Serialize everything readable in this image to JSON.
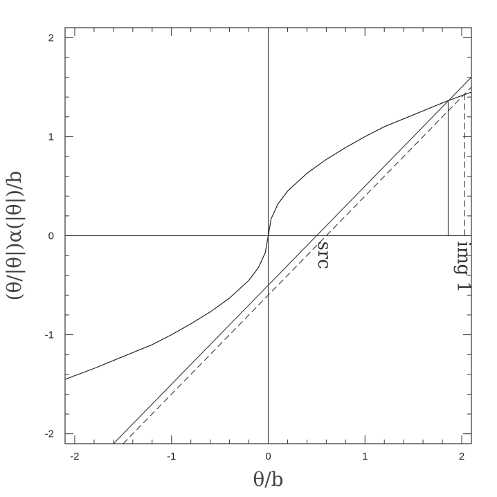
{
  "chart_data": {
    "type": "line",
    "xlabel": "θ/b",
    "ylabel": "(θ/|θ|)α(|θ|)/b",
    "xlim": [
      -2.1,
      2.1
    ],
    "ylim": [
      -2.1,
      2.1
    ],
    "xticks": [
      -2,
      -1,
      0,
      1,
      2
    ],
    "yticks": [
      -2,
      -1,
      0,
      1,
      2
    ],
    "xtick_labels": [
      "-2",
      "-1",
      "0",
      "1",
      "2"
    ],
    "ytick_labels": [
      "-2",
      "-1",
      "0",
      "1",
      "2"
    ],
    "grid": false,
    "series": [
      {
        "style": "solid",
        "color": "#222222",
        "x": [
          -2.1,
          -1.8,
          -1.5,
          -1.2,
          -1.0,
          -0.8,
          -0.6,
          -0.4,
          -0.2,
          -0.1,
          -0.03,
          0,
          0.03,
          0.1,
          0.2,
          0.4,
          0.6,
          0.8,
          1.0,
          1.2,
          1.5,
          1.85,
          2.1
        ],
        "y": [
          -1.45,
          -1.34,
          -1.22,
          -1.1,
          -1.0,
          -0.89,
          -0.77,
          -0.63,
          -0.45,
          -0.32,
          -0.17,
          0,
          0.17,
          0.32,
          0.45,
          0.63,
          0.77,
          0.89,
          1.0,
          1.1,
          1.22,
          1.36,
          1.45
        ]
      },
      {
        "style": "solid",
        "color": "#444444",
        "x": [
          -1.6,
          2.1
        ],
        "y": [
          -2.1,
          1.6
        ]
      },
      {
        "style": "dashed",
        "color": "#444444",
        "x": [
          -1.5,
          2.1
        ],
        "y": [
          -2.1,
          1.5
        ]
      }
    ],
    "reference_lines": [
      {
        "orientation": "vertical",
        "x": 0,
        "style": "solid"
      },
      {
        "orientation": "horizontal",
        "y": 0,
        "style": "solid"
      }
    ],
    "markers": [
      {
        "orientation": "vertical",
        "x": 1.86,
        "y_from": 0,
        "y_to": 1.37,
        "style": "solid"
      },
      {
        "orientation": "vertical",
        "x": 2.03,
        "y_from": 0,
        "y_to": 1.43,
        "style": "dashed"
      }
    ],
    "annotations": [
      {
        "text": "src",
        "x": 0.52,
        "y": 0
      },
      {
        "text": "img 1",
        "x": 1.96,
        "y": 0
      }
    ]
  }
}
